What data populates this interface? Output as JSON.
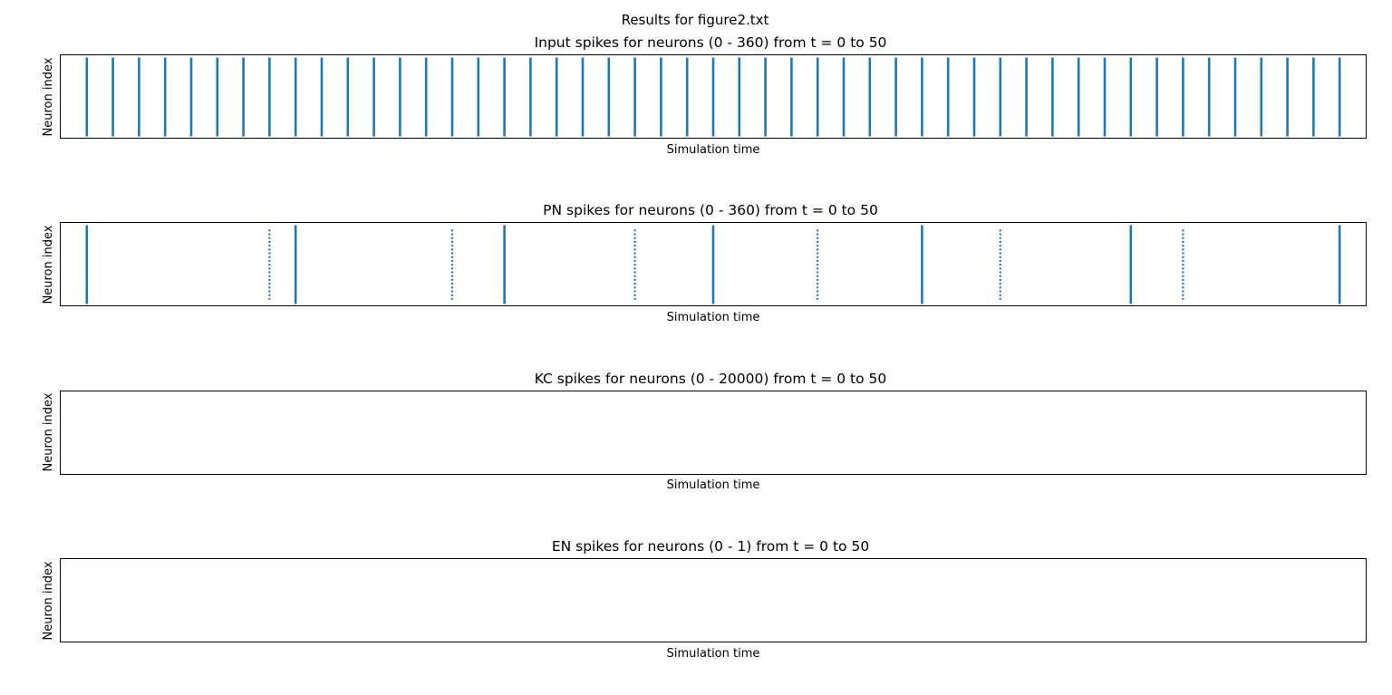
{
  "figure": {
    "suptitle": "Results for figure2.txt"
  },
  "chart_data": [
    {
      "type": "scatter",
      "title": "Input spikes for neurons (0 - 360) from t = 0 to 50",
      "xlabel": "Simulation time",
      "ylabel": "Neuron index",
      "xlim": [
        0,
        50
      ],
      "ylim": [
        0,
        360
      ],
      "xticks_visible": false,
      "yticks_visible": false,
      "grid": false,
      "color": "#1f77b4",
      "spikes": [
        {
          "t": 1,
          "neurons": [
            0,
            360
          ],
          "style": "solid"
        },
        {
          "t": 2,
          "neurons": [
            0,
            360
          ],
          "style": "solid"
        },
        {
          "t": 3,
          "neurons": [
            0,
            360
          ],
          "style": "solid"
        },
        {
          "t": 4,
          "neurons": [
            0,
            360
          ],
          "style": "solid"
        },
        {
          "t": 5,
          "neurons": [
            0,
            360
          ],
          "style": "solid"
        },
        {
          "t": 6,
          "neurons": [
            0,
            360
          ],
          "style": "solid"
        },
        {
          "t": 7,
          "neurons": [
            0,
            360
          ],
          "style": "solid"
        },
        {
          "t": 8,
          "neurons": [
            0,
            360
          ],
          "style": "solid"
        },
        {
          "t": 9,
          "neurons": [
            0,
            360
          ],
          "style": "solid"
        },
        {
          "t": 10,
          "neurons": [
            0,
            360
          ],
          "style": "solid"
        },
        {
          "t": 11,
          "neurons": [
            0,
            360
          ],
          "style": "solid"
        },
        {
          "t": 12,
          "neurons": [
            0,
            360
          ],
          "style": "solid"
        },
        {
          "t": 13,
          "neurons": [
            0,
            360
          ],
          "style": "solid"
        },
        {
          "t": 14,
          "neurons": [
            0,
            360
          ],
          "style": "solid"
        },
        {
          "t": 15,
          "neurons": [
            0,
            360
          ],
          "style": "solid"
        },
        {
          "t": 16,
          "neurons": [
            0,
            360
          ],
          "style": "solid"
        },
        {
          "t": 17,
          "neurons": [
            0,
            360
          ],
          "style": "solid"
        },
        {
          "t": 18,
          "neurons": [
            0,
            360
          ],
          "style": "solid"
        },
        {
          "t": 19,
          "neurons": [
            0,
            360
          ],
          "style": "solid"
        },
        {
          "t": 20,
          "neurons": [
            0,
            360
          ],
          "style": "solid"
        },
        {
          "t": 21,
          "neurons": [
            0,
            360
          ],
          "style": "solid"
        },
        {
          "t": 22,
          "neurons": [
            0,
            360
          ],
          "style": "solid"
        },
        {
          "t": 23,
          "neurons": [
            0,
            360
          ],
          "style": "solid"
        },
        {
          "t": 24,
          "neurons": [
            0,
            360
          ],
          "style": "solid"
        },
        {
          "t": 25,
          "neurons": [
            0,
            360
          ],
          "style": "solid"
        },
        {
          "t": 26,
          "neurons": [
            0,
            360
          ],
          "style": "solid"
        },
        {
          "t": 27,
          "neurons": [
            0,
            360
          ],
          "style": "solid"
        },
        {
          "t": 28,
          "neurons": [
            0,
            360
          ],
          "style": "solid"
        },
        {
          "t": 29,
          "neurons": [
            0,
            360
          ],
          "style": "solid"
        },
        {
          "t": 30,
          "neurons": [
            0,
            360
          ],
          "style": "solid"
        },
        {
          "t": 31,
          "neurons": [
            0,
            360
          ],
          "style": "solid"
        },
        {
          "t": 32,
          "neurons": [
            0,
            360
          ],
          "style": "solid"
        },
        {
          "t": 33,
          "neurons": [
            0,
            360
          ],
          "style": "solid"
        },
        {
          "t": 34,
          "neurons": [
            0,
            360
          ],
          "style": "solid"
        },
        {
          "t": 35,
          "neurons": [
            0,
            360
          ],
          "style": "solid"
        },
        {
          "t": 36,
          "neurons": [
            0,
            360
          ],
          "style": "solid"
        },
        {
          "t": 37,
          "neurons": [
            0,
            360
          ],
          "style": "solid"
        },
        {
          "t": 38,
          "neurons": [
            0,
            360
          ],
          "style": "solid"
        },
        {
          "t": 39,
          "neurons": [
            0,
            360
          ],
          "style": "solid"
        },
        {
          "t": 40,
          "neurons": [
            0,
            360
          ],
          "style": "solid"
        },
        {
          "t": 41,
          "neurons": [
            0,
            360
          ],
          "style": "solid"
        },
        {
          "t": 42,
          "neurons": [
            0,
            360
          ],
          "style": "solid"
        },
        {
          "t": 43,
          "neurons": [
            0,
            360
          ],
          "style": "solid"
        },
        {
          "t": 44,
          "neurons": [
            0,
            360
          ],
          "style": "solid"
        },
        {
          "t": 45,
          "neurons": [
            0,
            360
          ],
          "style": "solid"
        },
        {
          "t": 46,
          "neurons": [
            0,
            360
          ],
          "style": "solid"
        },
        {
          "t": 47,
          "neurons": [
            0,
            360
          ],
          "style": "solid"
        },
        {
          "t": 48,
          "neurons": [
            0,
            360
          ],
          "style": "solid"
        },
        {
          "t": 49,
          "neurons": [
            0,
            360
          ],
          "style": "solid"
        }
      ]
    },
    {
      "type": "scatter",
      "title": "PN spikes for neurons (0 - 360) from t = 0 to 50",
      "xlabel": "Simulation time",
      "ylabel": "Neuron index",
      "xlim": [
        0,
        50
      ],
      "ylim": [
        0,
        360
      ],
      "xticks_visible": false,
      "yticks_visible": false,
      "grid": false,
      "color": "#1f77b4",
      "spikes": [
        {
          "t": 1,
          "neurons": [
            0,
            360
          ],
          "style": "solid"
        },
        {
          "t": 8,
          "neurons": [
            20,
            340
          ],
          "style": "dotted"
        },
        {
          "t": 9,
          "neurons": [
            0,
            360
          ],
          "style": "solid"
        },
        {
          "t": 15,
          "neurons": [
            20,
            340
          ],
          "style": "dotted"
        },
        {
          "t": 17,
          "neurons": [
            0,
            360
          ],
          "style": "solid"
        },
        {
          "t": 22,
          "neurons": [
            20,
            340
          ],
          "style": "dotted"
        },
        {
          "t": 25,
          "neurons": [
            0,
            360
          ],
          "style": "solid"
        },
        {
          "t": 29,
          "neurons": [
            20,
            340
          ],
          "style": "dotted"
        },
        {
          "t": 33,
          "neurons": [
            0,
            360
          ],
          "style": "solid"
        },
        {
          "t": 36,
          "neurons": [
            20,
            340
          ],
          "style": "dotted"
        },
        {
          "t": 41,
          "neurons": [
            0,
            360
          ],
          "style": "solid"
        },
        {
          "t": 43,
          "neurons": [
            20,
            340
          ],
          "style": "dotted"
        },
        {
          "t": 49,
          "neurons": [
            0,
            360
          ],
          "style": "solid"
        }
      ]
    },
    {
      "type": "scatter",
      "title": "KC spikes for neurons (0 - 20000) from t = 0 to 50",
      "xlabel": "Simulation time",
      "ylabel": "Neuron index",
      "xlim": [
        0,
        50
      ],
      "ylim": [
        0,
        20000
      ],
      "xticks_visible": false,
      "yticks_visible": false,
      "grid": false,
      "color": "#1f77b4",
      "spikes": []
    },
    {
      "type": "scatter",
      "title": "EN spikes for neurons (0 - 1) from t = 0 to 50",
      "xlabel": "Simulation time",
      "ylabel": "Neuron index",
      "xlim": [
        0,
        50
      ],
      "ylim": [
        0,
        1
      ],
      "xticks_visible": false,
      "yticks_visible": false,
      "grid": false,
      "color": "#1f77b4",
      "spikes": []
    }
  ]
}
